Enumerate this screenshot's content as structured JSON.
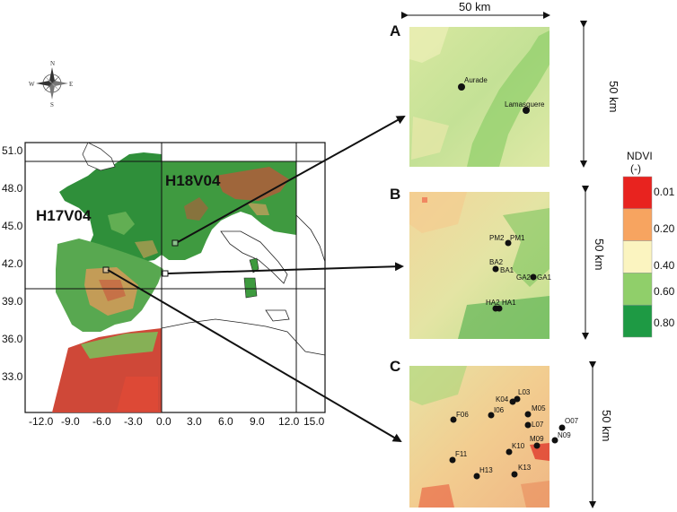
{
  "compass": {
    "n": "N",
    "s": "S",
    "e": "E",
    "w": "W"
  },
  "main_map": {
    "tiles": [
      "H17V04",
      "H18V04"
    ],
    "y_ticks": [
      "51.0",
      "48.0",
      "45.0",
      "42.0",
      "39.0",
      "36.0",
      "33.0"
    ],
    "x_ticks": [
      "-12.0",
      "-9.0",
      "-6.0",
      "-3.0",
      "0.0",
      "3.0",
      "6.0",
      "9.0",
      "12.0",
      "15.0"
    ]
  },
  "scale": {
    "width_label": "50 km",
    "height_label": "50 km"
  },
  "panels": [
    {
      "letter": "A",
      "sites": [
        "Aurade",
        "Lamasquere"
      ]
    },
    {
      "letter": "B",
      "sites": [
        "PM2",
        "PM1",
        "BA2",
        "BA1",
        "GA2",
        "GA1",
        "HA2",
        "HA1"
      ]
    },
    {
      "letter": "C",
      "sites": [
        "K04",
        "L03",
        "F06",
        "I06",
        "M05",
        "L07",
        "O07",
        "N09",
        "M09",
        "K10",
        "F11",
        "H13",
        "K13"
      ]
    }
  ],
  "legend": {
    "title": "NDVI",
    "unit": "(-)",
    "labels": [
      "0.01",
      "0.20",
      "0.40",
      "0.60",
      "0.80"
    ],
    "colors": [
      "#e8231f",
      "#f7a460",
      "#fbf4c0",
      "#90cf6a",
      "#1e9a44"
    ]
  }
}
